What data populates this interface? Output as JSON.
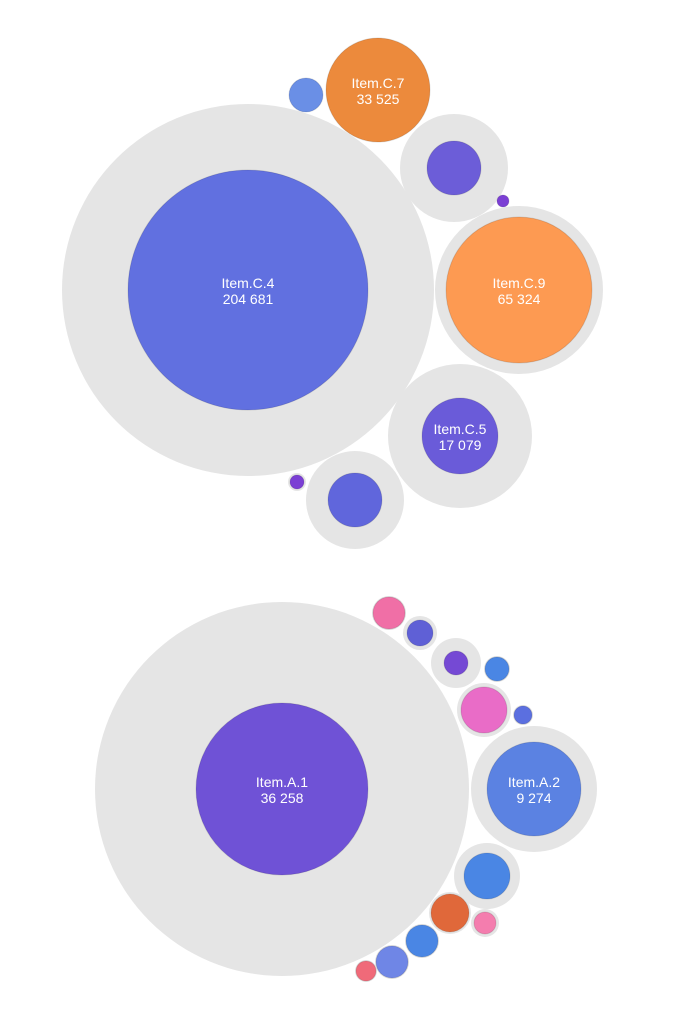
{
  "chart_data": {
    "type": "packed-bubble",
    "title": "",
    "legend": "none",
    "groups": [
      {
        "bubbles": [
          {
            "name": "Item.C.4",
            "value_label": "204 681",
            "value": 204681,
            "color": "#6170e0",
            "labeled": true
          },
          {
            "name": "Item.C.7",
            "value_label": "33 525",
            "value": 33525,
            "color": "#ec8a3c",
            "labeled": true
          },
          {
            "name": "Item.C.9",
            "value_label": "65 324",
            "value": 65324,
            "color": "#fd9a52",
            "labeled": true
          },
          {
            "name": "Item.C.5",
            "value_label": "17 079",
            "value": 17079,
            "color": "#6a5bd9",
            "labeled": true
          },
          {
            "name": "",
            "value_label": "",
            "value": 10000,
            "color": "#6c5dd8",
            "labeled": false
          },
          {
            "name": "",
            "value_label": "",
            "value": 10000,
            "color": "#6066dc",
            "labeled": false
          },
          {
            "name": "",
            "value_label": "",
            "value": 3500,
            "color": "#6a8fe6",
            "labeled": false
          },
          {
            "name": "",
            "value_label": "",
            "value": 300,
            "color": "#7b3fd4",
            "labeled": false
          },
          {
            "name": "",
            "value_label": "",
            "value": 200,
            "color": "#7b3fd4",
            "labeled": false
          }
        ]
      },
      {
        "bubbles": [
          {
            "name": "Item.A.1",
            "value_label": "36 258",
            "value": 36258,
            "color": "#6f52d6",
            "labeled": true
          },
          {
            "name": "Item.A.2",
            "value_label": "9 274",
            "value": 9274,
            "color": "#5b82e2",
            "labeled": true
          },
          {
            "name": "",
            "value_label": "",
            "value": 1500,
            "color": "#e96cc7",
            "labeled": false
          },
          {
            "name": "",
            "value_label": "",
            "value": 1400,
            "color": "#4a86e4",
            "labeled": false
          },
          {
            "name": "",
            "value_label": "",
            "value": 800,
            "color": "#e0683a",
            "labeled": false
          },
          {
            "name": "",
            "value_label": "",
            "value": 700,
            "color": "#4a86e4",
            "labeled": false
          },
          {
            "name": "",
            "value_label": "",
            "value": 700,
            "color": "#6f86e6",
            "labeled": false
          },
          {
            "name": "",
            "value_label": "",
            "value": 600,
            "color": "#f06fa6",
            "labeled": false
          },
          {
            "name": "",
            "value_label": "",
            "value": 500,
            "color": "#5f60d6",
            "labeled": false
          },
          {
            "name": "",
            "value_label": "",
            "value": 450,
            "color": "#7549d4",
            "labeled": false
          },
          {
            "name": "",
            "value_label": "",
            "value": 380,
            "color": "#4a86e4",
            "labeled": false
          },
          {
            "name": "",
            "value_label": "",
            "value": 300,
            "color": "#f47dae",
            "labeled": false
          },
          {
            "name": "",
            "value_label": "",
            "value": 250,
            "color": "#f06a79",
            "labeled": false
          },
          {
            "name": "",
            "value_label": "",
            "value": 200,
            "color": "#5b6fe0",
            "labeled": false
          }
        ]
      }
    ]
  }
}
